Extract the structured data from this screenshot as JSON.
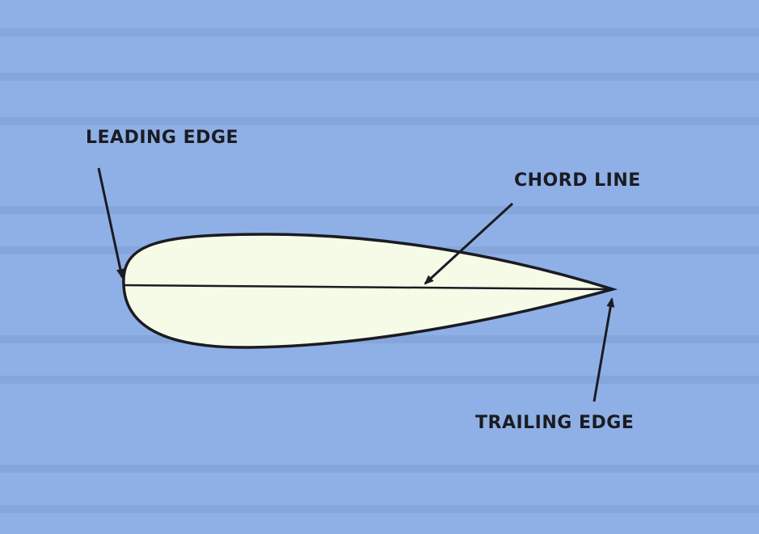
{
  "diagram": {
    "labels": {
      "leading_edge": "LEADING EDGE",
      "chord_line": "CHORD LINE",
      "trailing_edge": "TRAILING EDGE"
    },
    "colors": {
      "background": "#8fb0e6",
      "airfoil_fill": "#f6fbe8",
      "line": "#1b1b22"
    }
  }
}
